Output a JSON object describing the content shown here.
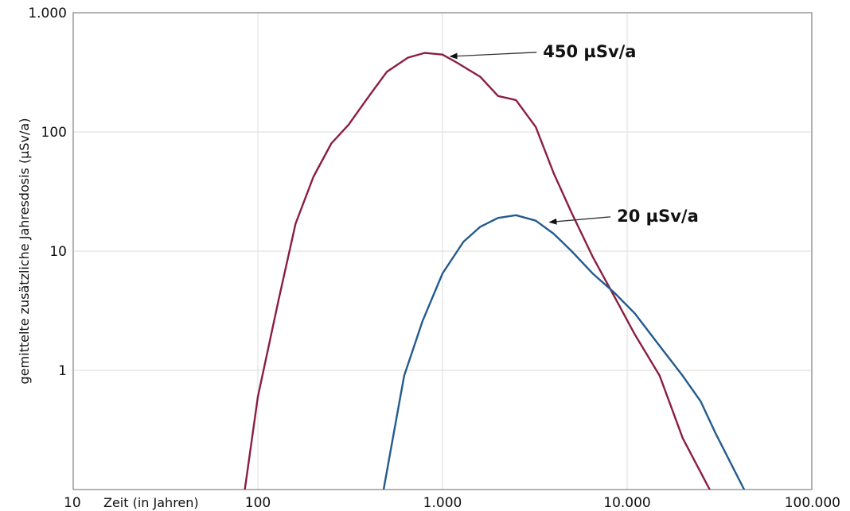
{
  "chart_data": {
    "type": "line",
    "title": "",
    "xlabel": "Zeit (in Jahren)",
    "ylabel": "gemittelte zusätzliche Jahresdosis (µSv/a)",
    "x_scale": "log",
    "y_scale": "log",
    "xlim": [
      10,
      100000
    ],
    "ylim": [
      0.1,
      1000
    ],
    "grid": true,
    "x_ticks": [
      {
        "value": 10,
        "label": "10"
      },
      {
        "value": 100,
        "label": "100"
      },
      {
        "value": 1000,
        "label": "1.000"
      },
      {
        "value": 10000,
        "label": "10.000"
      },
      {
        "value": 100000,
        "label": "100.000"
      }
    ],
    "y_ticks": [
      {
        "value": 1,
        "label": "1"
      },
      {
        "value": 10,
        "label": "10"
      },
      {
        "value": 100,
        "label": "100"
      },
      {
        "value": 1000,
        "label": "1.000"
      }
    ],
    "series": [
      {
        "color": "#8b1e3f",
        "x": [
          85,
          100,
          130,
          160,
          200,
          250,
          310,
          400,
          500,
          650,
          800,
          1000,
          1200,
          1600,
          2000,
          2500,
          3200,
          4000,
          5000,
          6500,
          8500,
          11000,
          15000,
          20000,
          28000
        ],
        "y": [
          0.1,
          0.6,
          4,
          17,
          42,
          80,
          115,
          200,
          320,
          420,
          460,
          445,
          380,
          290,
          200,
          185,
          110,
          45,
          21,
          9,
          4.2,
          2,
          0.9,
          0.27,
          0.1
        ]
      },
      {
        "color": "#235b8e",
        "x": [
          480,
          520,
          620,
          780,
          1000,
          1300,
          1600,
          2000,
          2500,
          3200,
          4000,
          5000,
          6500,
          8500,
          11000,
          15000,
          20000,
          25000,
          30000,
          43000
        ],
        "y": [
          0.1,
          0.2,
          0.9,
          2.6,
          6.5,
          12,
          16,
          19,
          20,
          18,
          14,
          10,
          6.5,
          4.5,
          3,
          1.6,
          0.9,
          0.55,
          0.3,
          0.1
        ]
      }
    ],
    "annotations": [
      {
        "text": "450 µSv/a",
        "text_x": 3500,
        "text_y": 480,
        "point_x": 1100,
        "point_y": 430
      },
      {
        "text": "20 µSv/a",
        "text_x": 8800,
        "text_y": 20,
        "point_x": 3800,
        "point_y": 17.5
      }
    ]
  }
}
